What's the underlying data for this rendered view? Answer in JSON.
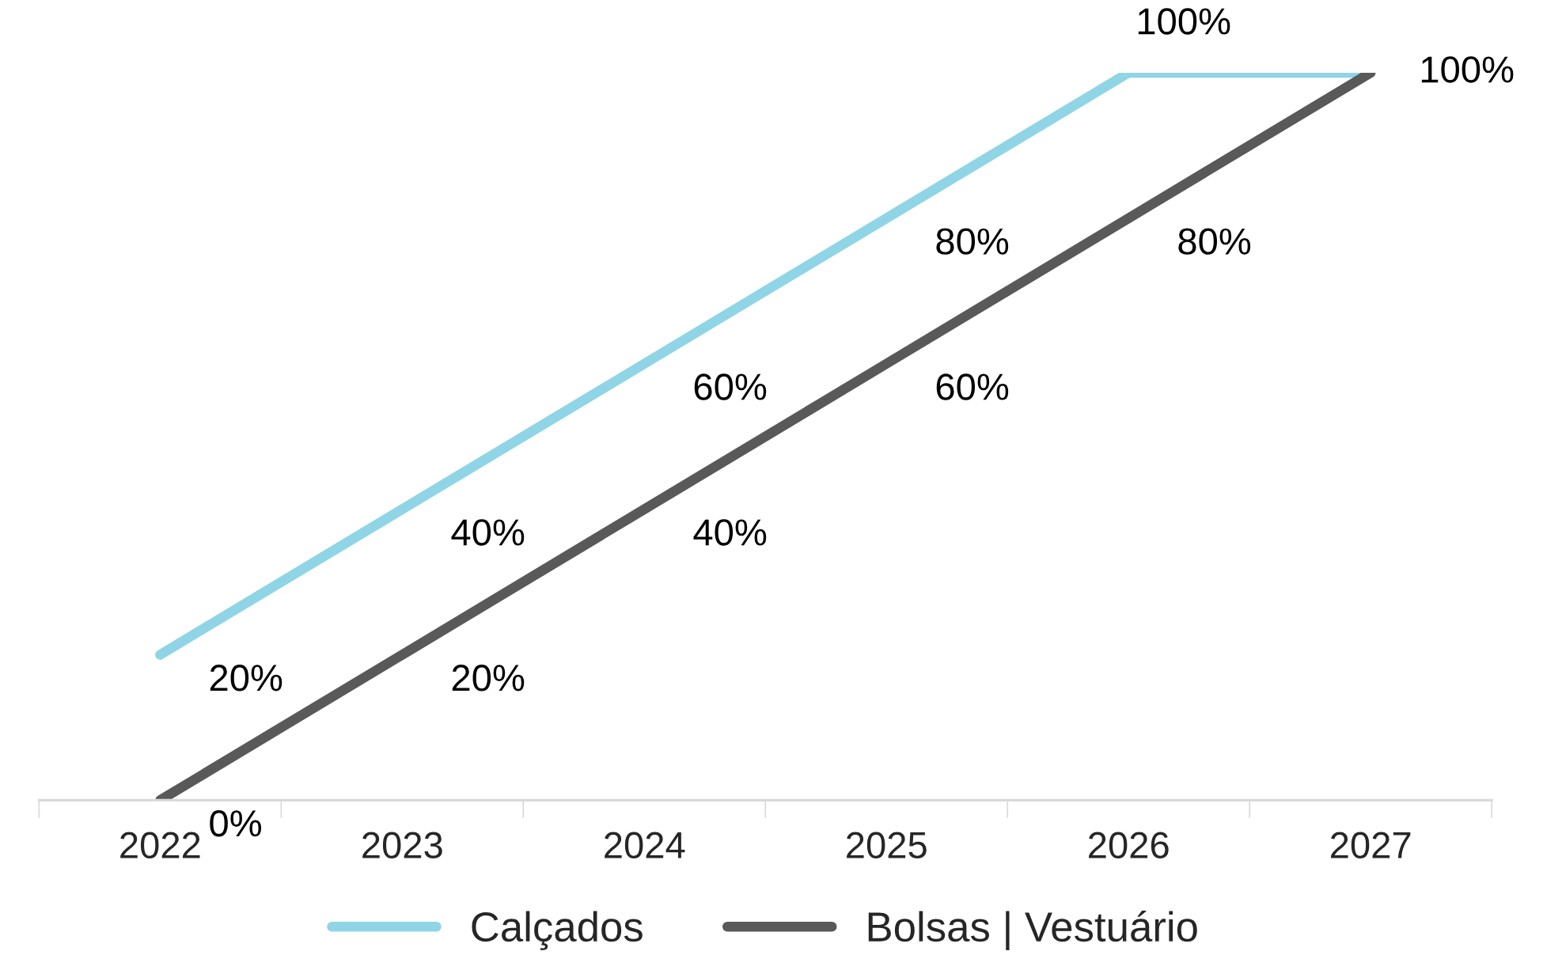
{
  "chart_data": {
    "type": "line",
    "categories": [
      "2022",
      "2023",
      "2024",
      "2025",
      "2026",
      "2027"
    ],
    "series": [
      {
        "name": "Calçados",
        "color": "#8fd5e6",
        "values": [
          20,
          40,
          60,
          80,
          100,
          100
        ],
        "value_labels": [
          "20%",
          "40%",
          "60%",
          "80%",
          "100%",
          null
        ]
      },
      {
        "name": "Bolsas | Vestuário",
        "color": "#595959",
        "values": [
          0,
          20,
          40,
          60,
          80,
          100
        ],
        "value_labels": [
          "0%",
          "20%",
          "40%",
          "60%",
          "80%",
          "100%"
        ]
      }
    ],
    "legend": "bottom",
    "grid": false,
    "marker": "none",
    "line_style": "solid"
  }
}
